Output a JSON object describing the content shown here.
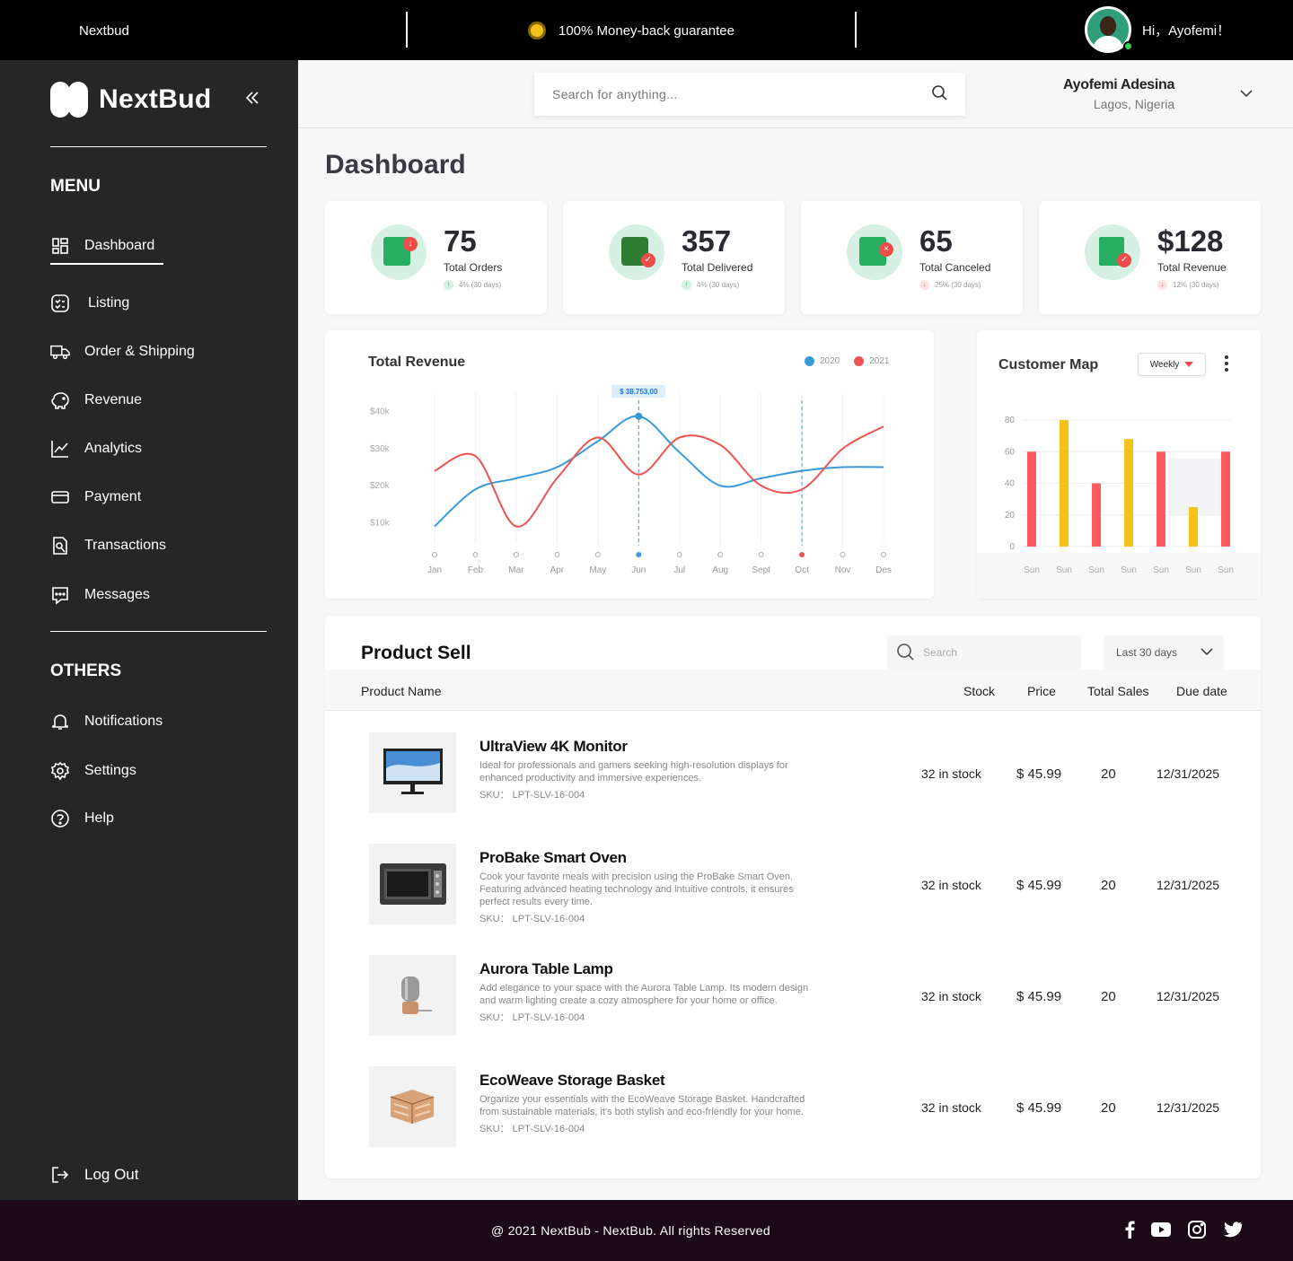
{
  "topbar": {
    "brand": "Nextbud",
    "guarantee": "100% Money-back guarantee",
    "greeting": "Hi，Ayofemi！"
  },
  "sidebar": {
    "logo": "NextBud",
    "menu_title": "MENU",
    "items": [
      {
        "label": "Dashboard",
        "icon": "dashboard-icon"
      },
      {
        "label": "Listing",
        "icon": "listing-icon"
      },
      {
        "label": "Order & Shipping",
        "icon": "truck-icon"
      },
      {
        "label": "Revenue",
        "icon": "piggy-bank-icon"
      },
      {
        "label": "Analytics",
        "icon": "analytics-icon"
      },
      {
        "label": "Payment",
        "icon": "card-icon"
      },
      {
        "label": "Transactions",
        "icon": "transactions-icon"
      },
      {
        "label": "Messages",
        "icon": "message-icon"
      }
    ],
    "others_title": "OTHERS",
    "others": [
      {
        "label": "Notifications",
        "icon": "bell-icon"
      },
      {
        "label": "Settings",
        "icon": "gear-icon"
      },
      {
        "label": "Help",
        "icon": "help-icon"
      }
    ],
    "logout": "Log Out"
  },
  "header": {
    "search_placeholder": "Search for anything...",
    "user_name": "Ayofemi Adesina",
    "user_location": "Lagos, Nigeria"
  },
  "page_title": "Dashboard",
  "stats": [
    {
      "value": "75",
      "label": "Total Orders",
      "trend": "4% (30 days)",
      "trend_dir": "up"
    },
    {
      "value": "357",
      "label": "Total Delivered",
      "trend": "4% (30 days)",
      "trend_dir": "up"
    },
    {
      "value": "65",
      "label": "Total Canceled",
      "trend": "25% (30 days)",
      "trend_dir": "down"
    },
    {
      "value": "$128",
      "label": "Total Revenue",
      "trend": "12% (30 days)",
      "trend_dir": "down"
    }
  ],
  "revenue": {
    "title": "Total Revenue",
    "tooltip": "$ 38.753,00",
    "legend": [
      "2020",
      "2021"
    ]
  },
  "customer_map": {
    "title": "Customer Map",
    "period": "Weekly"
  },
  "chart_data": [
    {
      "type": "line",
      "title": "Total Revenue",
      "x": [
        "Jan",
        "Feb",
        "Mar",
        "Apr",
        "May",
        "Jun",
        "Jul",
        "Aug",
        "Sept",
        "Oct",
        "Nov",
        "Des"
      ],
      "y_ticks": [
        "$10k",
        "$20k",
        "$30k",
        "$40k"
      ],
      "ylim": [
        5000,
        45000
      ],
      "series": [
        {
          "name": "2020",
          "color": "#3a9ad9",
          "values": [
            9000,
            19000,
            22000,
            25000,
            32000,
            38753,
            29000,
            20000,
            22000,
            24000,
            25000,
            25000
          ]
        },
        {
          "name": "2021",
          "color": "#ef5350",
          "values": [
            24000,
            28000,
            9000,
            22000,
            33000,
            23000,
            33000,
            31000,
            20000,
            19000,
            30000,
            36000
          ]
        }
      ],
      "highlight": [
        "Jun",
        "Oct"
      ],
      "legend": "top-right",
      "grid": true
    },
    {
      "type": "bar",
      "title": "Customer Map",
      "categories": [
        "Sun",
        "Sun",
        "Sun",
        "Sun",
        "Sun",
        "Sun",
        "Sun"
      ],
      "values": [
        60,
        80,
        40,
        68,
        60,
        25,
        60
      ],
      "colors": [
        "#ff5a5f",
        "#f4c21b",
        "#ff5a5f",
        "#f4c21b",
        "#ff5a5f",
        "#f4c21b",
        "#ff5a5f"
      ],
      "y_ticks": [
        "0",
        "20",
        "40",
        "60",
        "80"
      ],
      "ylim": [
        0,
        80
      ],
      "grid": true
    }
  ],
  "product_sell": {
    "title": "Product Sell",
    "search_placeholder": "Search",
    "range": "Last 30 days",
    "columns": [
      "Product Name",
      "Stock",
      "Price",
      "Total Sales",
      "Due date"
    ],
    "rows": [
      {
        "name": "UltraView 4K Monitor",
        "desc": "Ideal for professionals and gamers seeking high-resolution displays for enhanced productivity and immersive experiences.",
        "sku": "SKU： LPT-SLV-16-004",
        "stock": "32 in stock",
        "price": "$ 45.99",
        "sales": "20",
        "due": "12/31/2025",
        "image": "monitor"
      },
      {
        "name": "ProBake Smart Oven",
        "desc": "Cook your favorite meals with precision using the ProBake Smart Oven. Featuring advanced heating technology and intuitive controls, it ensures perfect results every time.",
        "sku": "SKU： LPT-SLV-16-004",
        "stock": "32 in stock",
        "price": "$ 45.99",
        "sales": "20",
        "due": "12/31/2025",
        "image": "oven"
      },
      {
        "name": "Aurora Table Lamp",
        "desc": "Add elegance to your space with the Aurora Table Lamp. Its modern design and warm lighting create a cozy atmosphere for your home or office.",
        "sku": "SKU： LPT-SLV-16-004",
        "stock": "32 in stock",
        "price": "$ 45.99",
        "sales": "20",
        "due": "12/31/2025",
        "image": "lamp"
      },
      {
        "name": "EcoWeave Storage Basket",
        "desc": "Organize your essentials with the EcoWeave Storage Basket. Handcrafted from sustainable materials, it's both stylish and eco-friendly for your home.",
        "sku": "SKU： LPT-SLV-16-004",
        "stock": "32 in stock",
        "price": "$ 45.99",
        "sales": "20",
        "due": "12/31/2025",
        "image": "basket"
      }
    ]
  },
  "footer": {
    "copyright": "@ 2021 NextBub - NextBub. All rights Reserved",
    "social": [
      "facebook-icon",
      "youtube-icon",
      "instagram-icon",
      "twitter-icon"
    ]
  }
}
